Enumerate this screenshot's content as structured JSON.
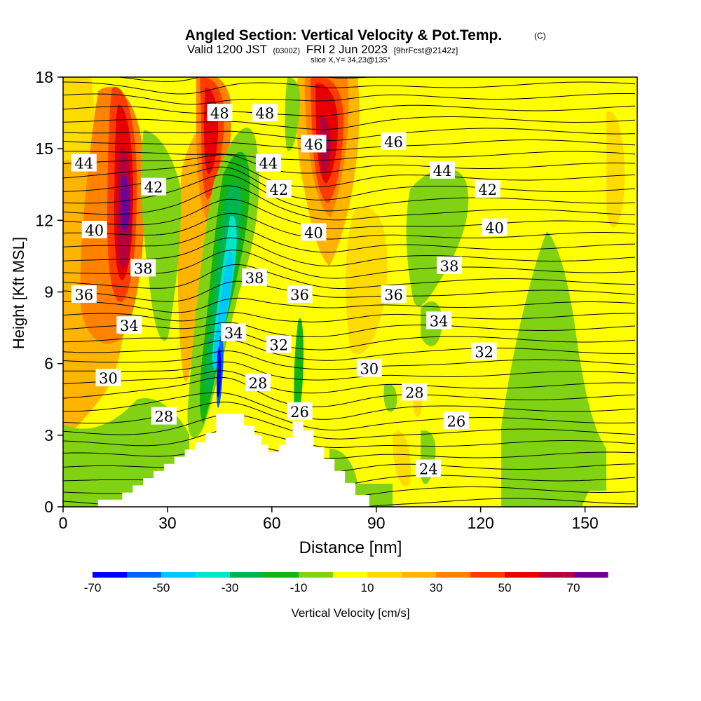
{
  "title": {
    "main": "Angled Section: Vertical Velocity & Pot.Temp.",
    "copyright": "(C)",
    "valid_prefix": "Valid 1200 JST",
    "valid_utc": "(0300Z)",
    "valid_date": "FRI 2 Jun 2023",
    "forecast": "[9hrFcst@2142z]",
    "slice": "slice X,Y= 34,23@135°"
  },
  "chart_data": {
    "type": "heatmap",
    "xlabel": "Distance [nm]",
    "ylabel": "Height [Kft MSL]",
    "xlim": [
      0,
      165
    ],
    "ylim": [
      0,
      18
    ],
    "xticks": [
      0,
      30,
      60,
      90,
      120,
      150
    ],
    "yticks": [
      0,
      3,
      6,
      9,
      12,
      15,
      18
    ],
    "grid": false,
    "colorbar": {
      "label": "Vertical Velocity [cm/s]",
      "tick_labels": [
        "-70",
        "-50",
        "-30",
        "-10",
        "10",
        "30",
        "50",
        "70"
      ],
      "colors": [
        "#0000ff",
        "#0064ff",
        "#00c8ff",
        "#00e6c8",
        "#00b450",
        "#14b414",
        "#82d214",
        "#ffff00",
        "#ffdc00",
        "#ffb400",
        "#ff8200",
        "#ff3c00",
        "#e60000",
        "#b4003c",
        "#6e0096"
      ]
    },
    "terrain": [
      [
        0,
        0
      ],
      [
        10,
        0
      ],
      [
        10,
        0.3
      ],
      [
        17,
        0.3
      ],
      [
        17,
        0.6
      ],
      [
        20,
        0.6
      ],
      [
        20,
        0.9
      ],
      [
        23,
        0.9
      ],
      [
        23,
        1.2
      ],
      [
        26,
        1.2
      ],
      [
        26,
        1.5
      ],
      [
        29,
        1.5
      ],
      [
        29,
        1.8
      ],
      [
        32,
        1.8
      ],
      [
        32,
        2.1
      ],
      [
        35,
        2.1
      ],
      [
        35,
        2.4
      ],
      [
        38,
        2.4
      ],
      [
        38,
        2.7
      ],
      [
        41,
        2.7
      ],
      [
        41,
        3.1
      ],
      [
        44,
        3.1
      ],
      [
        44,
        3.9
      ],
      [
        52,
        3.9
      ],
      [
        52,
        3.4
      ],
      [
        55,
        3.4
      ],
      [
        55,
        3.0
      ],
      [
        57,
        3.0
      ],
      [
        57,
        2.6
      ],
      [
        59,
        2.6
      ],
      [
        59,
        2.3
      ],
      [
        62,
        2.3
      ],
      [
        62,
        2.6
      ],
      [
        64,
        2.6
      ],
      [
        64,
        2.9
      ],
      [
        66,
        2.9
      ],
      [
        66,
        3.6
      ],
      [
        69,
        3.6
      ],
      [
        69,
        3.2
      ],
      [
        72,
        3.2
      ],
      [
        72,
        2.5
      ],
      [
        75,
        2.5
      ],
      [
        75,
        2.0
      ],
      [
        78,
        2.0
      ],
      [
        78,
        1.5
      ],
      [
        81,
        1.5
      ],
      [
        81,
        1.0
      ],
      [
        84,
        1.0
      ],
      [
        84,
        0.5
      ],
      [
        88,
        0.5
      ],
      [
        88,
        0
      ],
      [
        0,
        0
      ]
    ],
    "contour_labels": [
      {
        "text": "48",
        "x": 45,
        "y": 16.5
      },
      {
        "text": "48",
        "x": 58,
        "y": 16.5
      },
      {
        "text": "46",
        "x": 72,
        "y": 15.2
      },
      {
        "text": "46",
        "x": 95,
        "y": 15.3
      },
      {
        "text": "44",
        "x": 6,
        "y": 14.4
      },
      {
        "text": "44",
        "x": 59,
        "y": 14.4
      },
      {
        "text": "44",
        "x": 109,
        "y": 14.1
      },
      {
        "text": "42",
        "x": 26,
        "y": 13.4
      },
      {
        "text": "42",
        "x": 62,
        "y": 13.3
      },
      {
        "text": "42",
        "x": 122,
        "y": 13.3
      },
      {
        "text": "40",
        "x": 9,
        "y": 11.6
      },
      {
        "text": "40",
        "x": 72,
        "y": 11.5
      },
      {
        "text": "40",
        "x": 124,
        "y": 11.7
      },
      {
        "text": "38",
        "x": 23,
        "y": 10.0
      },
      {
        "text": "38",
        "x": 55,
        "y": 9.6
      },
      {
        "text": "38",
        "x": 111,
        "y": 10.1
      },
      {
        "text": "36",
        "x": 6,
        "y": 8.9
      },
      {
        "text": "36",
        "x": 68,
        "y": 8.9
      },
      {
        "text": "36",
        "x": 95,
        "y": 8.9
      },
      {
        "text": "34",
        "x": 19,
        "y": 7.6
      },
      {
        "text": "34",
        "x": 49,
        "y": 7.3
      },
      {
        "text": "34",
        "x": 108,
        "y": 7.8
      },
      {
        "text": "32",
        "x": 62,
        "y": 6.8
      },
      {
        "text": "32",
        "x": 121,
        "y": 6.5
      },
      {
        "text": "30",
        "x": 13,
        "y": 5.4
      },
      {
        "text": "30",
        "x": 88,
        "y": 5.8
      },
      {
        "text": "28",
        "x": 56,
        "y": 5.2
      },
      {
        "text": "28",
        "x": 101,
        "y": 4.8
      },
      {
        "text": "28",
        "x": 29,
        "y": 3.8
      },
      {
        "text": "26",
        "x": 68,
        "y": 4.0
      },
      {
        "text": "26",
        "x": 113,
        "y": 3.6
      },
      {
        "text": "24",
        "x": 105,
        "y": 1.6
      }
    ]
  }
}
